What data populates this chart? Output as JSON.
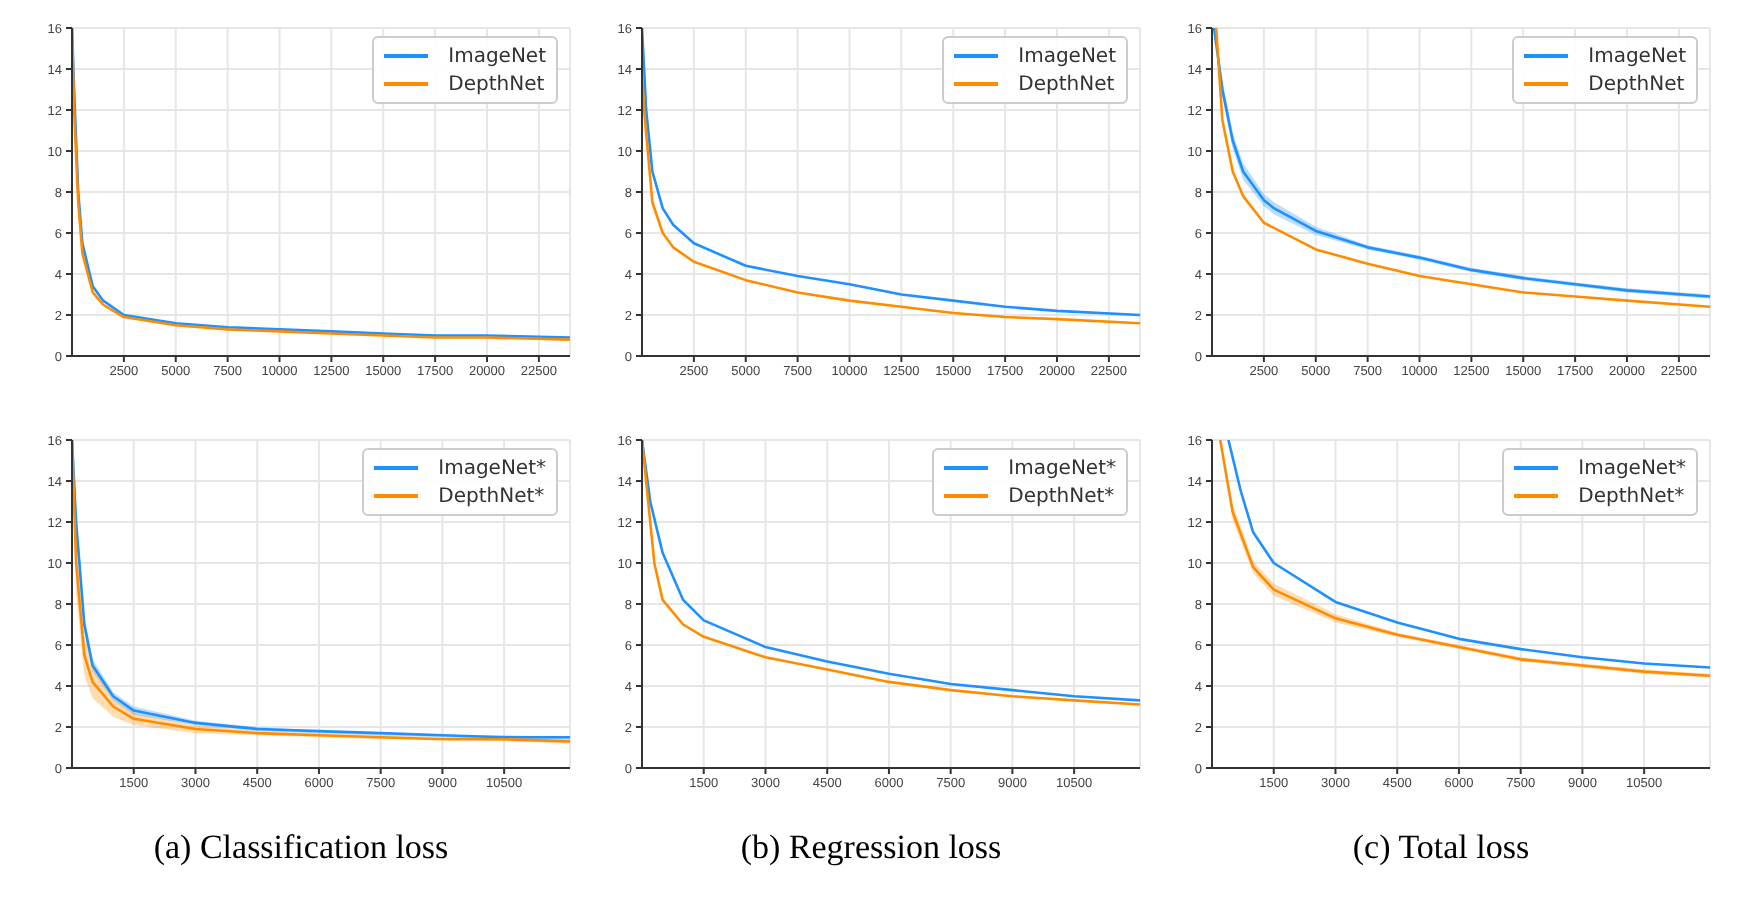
{
  "chart_data": [
    {
      "type": "line",
      "xlim": [
        0,
        24000
      ],
      "xticks": [
        2500,
        5000,
        7500,
        10000,
        12500,
        15000,
        17500,
        20000,
        22500
      ],
      "ylim": [
        0,
        16
      ],
      "yticks": [
        0,
        2,
        4,
        6,
        8,
        10,
        12,
        14,
        16
      ],
      "grid": true,
      "legend": "top right",
      "series": [
        {
          "name": "ImageNet",
          "color": "#1e90ff",
          "x": [
            0,
            100,
            300,
            500,
            1000,
            1500,
            2500,
            5000,
            7500,
            10000,
            12500,
            15000,
            17500,
            20000,
            24000
          ],
          "values": [
            16,
            13,
            8,
            5.5,
            3.4,
            2.7,
            2.0,
            1.6,
            1.4,
            1.3,
            1.2,
            1.1,
            1.0,
            1.0,
            0.9
          ]
        },
        {
          "name": "DepthNet",
          "color": "#ff8c00",
          "x": [
            0,
            100,
            300,
            500,
            1000,
            1500,
            2500,
            5000,
            7500,
            10000,
            12500,
            15000,
            17500,
            20000,
            24000
          ],
          "values": [
            16,
            12,
            7.5,
            5,
            3.1,
            2.5,
            1.9,
            1.5,
            1.3,
            1.2,
            1.1,
            1.0,
            0.9,
            0.9,
            0.8
          ]
        }
      ]
    },
    {
      "type": "line",
      "xlim": [
        0,
        24000
      ],
      "xticks": [
        2500,
        5000,
        7500,
        10000,
        12500,
        15000,
        17500,
        20000,
        22500
      ],
      "ylim": [
        0,
        16
      ],
      "yticks": [
        0,
        2,
        4,
        6,
        8,
        10,
        12,
        14,
        16
      ],
      "grid": true,
      "legend": "top right",
      "series": [
        {
          "name": "ImageNet",
          "color": "#1e90ff",
          "x": [
            0,
            200,
            500,
            1000,
            1500,
            2500,
            5000,
            7500,
            10000,
            12500,
            15000,
            17500,
            20000,
            24000
          ],
          "values": [
            16,
            12,
            9,
            7.2,
            6.4,
            5.5,
            4.4,
            3.9,
            3.5,
            3.0,
            2.7,
            2.4,
            2.2,
            2.0
          ]
        },
        {
          "name": "DepthNet",
          "color": "#ff8c00",
          "x": [
            0,
            100,
            500,
            1000,
            1500,
            2500,
            5000,
            7500,
            10000,
            12500,
            15000,
            17500,
            20000,
            24000
          ],
          "values": [
            14,
            12,
            7.5,
            6.0,
            5.3,
            4.6,
            3.7,
            3.1,
            2.7,
            2.4,
            2.1,
            1.9,
            1.8,
            1.6
          ]
        }
      ]
    },
    {
      "type": "line",
      "xlim": [
        0,
        24000
      ],
      "xticks": [
        2500,
        5000,
        7500,
        10000,
        12500,
        15000,
        17500,
        20000,
        22500
      ],
      "ylim": [
        0,
        16
      ],
      "yticks": [
        0,
        2,
        4,
        6,
        8,
        10,
        12,
        14,
        16
      ],
      "grid": true,
      "legend": "top right",
      "series": [
        {
          "name": "ImageNet",
          "color": "#1e90ff",
          "x": [
            100,
            500,
            1000,
            1500,
            2500,
            3000,
            5000,
            7500,
            10000,
            12500,
            15000,
            17500,
            20000,
            24000
          ],
          "values": [
            16,
            13,
            10.5,
            9,
            7.6,
            7.2,
            6.1,
            5.3,
            4.8,
            4.2,
            3.8,
            3.5,
            3.2,
            2.9
          ],
          "lower": [
            16,
            12.6,
            10.1,
            8.6,
            7.3,
            6.9,
            5.9,
            5.2,
            4.7,
            4.1,
            3.7,
            3.4,
            3.1,
            2.8
          ],
          "upper": [
            16,
            13.4,
            10.9,
            9.4,
            7.9,
            7.5,
            6.3,
            5.4,
            4.9,
            4.3,
            3.9,
            3.6,
            3.3,
            3.0
          ]
        },
        {
          "name": "DepthNet",
          "color": "#ff8c00",
          "x": [
            200,
            500,
            1000,
            1500,
            2500,
            5000,
            7500,
            10000,
            12500,
            15000,
            17500,
            20000,
            24000
          ],
          "values": [
            16,
            11.5,
            9,
            7.8,
            6.5,
            5.2,
            4.5,
            3.9,
            3.5,
            3.1,
            2.9,
            2.7,
            2.4
          ]
        }
      ]
    },
    {
      "type": "line",
      "xlim": [
        0,
        12100
      ],
      "xticks": [
        1500,
        3000,
        4500,
        6000,
        7500,
        9000,
        10500
      ],
      "ylim": [
        0,
        16
      ],
      "yticks": [
        0,
        2,
        4,
        6,
        8,
        10,
        12,
        14,
        16
      ],
      "grid": true,
      "legend": "top right",
      "annotations": [
        "(a) Classification loss"
      ],
      "series": [
        {
          "name": "ImageNet*",
          "color": "#1e90ff",
          "x": [
            0,
            100,
            300,
            500,
            1000,
            1500,
            3000,
            4500,
            6000,
            7500,
            9000,
            10500,
            12100
          ],
          "values": [
            16,
            12,
            7,
            5,
            3.5,
            2.8,
            2.2,
            1.9,
            1.8,
            1.7,
            1.6,
            1.5,
            1.5
          ],
          "lower": [
            16,
            11.5,
            6.6,
            4.7,
            3.3,
            2.6,
            2.1,
            1.8,
            1.7,
            1.6,
            1.5,
            1.4,
            1.4
          ],
          "upper": [
            16,
            12.5,
            7.4,
            5.3,
            3.7,
            3.0,
            2.3,
            2.0,
            1.8,
            1.7,
            1.6,
            1.6,
            1.5
          ]
        },
        {
          "name": "DepthNet*",
          "color": "#ff8c00",
          "x": [
            0,
            100,
            300,
            500,
            1000,
            1500,
            3000,
            4500,
            6000,
            7500,
            9000,
            10500,
            12100
          ],
          "values": [
            16,
            10,
            5.5,
            4.2,
            3.0,
            2.4,
            1.9,
            1.7,
            1.6,
            1.5,
            1.4,
            1.4,
            1.3
          ],
          "lower": [
            16,
            8.5,
            4.5,
            3.4,
            2.5,
            2.1,
            1.7,
            1.6,
            1.5,
            1.4,
            1.4,
            1.3,
            1.2
          ],
          "upper": [
            16,
            11.5,
            6.5,
            5.0,
            3.4,
            2.7,
            2.1,
            1.8,
            1.7,
            1.6,
            1.5,
            1.5,
            1.4
          ]
        }
      ]
    },
    {
      "type": "line",
      "xlim": [
        0,
        12100
      ],
      "xticks": [
        1500,
        3000,
        4500,
        6000,
        7500,
        9000,
        10500
      ],
      "ylim": [
        0,
        16
      ],
      "yticks": [
        0,
        2,
        4,
        6,
        8,
        10,
        12,
        14,
        16
      ],
      "grid": true,
      "legend": "top right",
      "annotations": [
        "(b) Regression loss"
      ],
      "series": [
        {
          "name": "ImageNet*",
          "color": "#1e90ff",
          "x": [
            0,
            200,
            500,
            1000,
            1500,
            3000,
            4500,
            6000,
            7500,
            9000,
            10500,
            12100
          ],
          "values": [
            16,
            13,
            10.5,
            8.2,
            7.2,
            5.9,
            5.2,
            4.6,
            4.1,
            3.8,
            3.5,
            3.3
          ]
        },
        {
          "name": "DepthNet*",
          "color": "#ff8c00",
          "x": [
            0,
            100,
            300,
            500,
            1000,
            1500,
            3000,
            4500,
            6000,
            7500,
            9000,
            10500,
            12100
          ],
          "values": [
            16,
            14,
            10,
            8.2,
            7.0,
            6.4,
            5.4,
            4.8,
            4.2,
            3.8,
            3.5,
            3.3,
            3.1
          ]
        }
      ]
    },
    {
      "type": "line",
      "xlim": [
        0,
        12100
      ],
      "xticks": [
        1500,
        3000,
        4500,
        6000,
        7500,
        9000,
        10500
      ],
      "ylim": [
        0,
        16
      ],
      "yticks": [
        0,
        2,
        4,
        6,
        8,
        10,
        12,
        14,
        16
      ],
      "grid": true,
      "legend": "top right",
      "annotations": [
        "(c) Total loss"
      ],
      "series": [
        {
          "name": "ImageNet*",
          "color": "#1e90ff",
          "x": [
            400,
            700,
            1000,
            1500,
            3000,
            4500,
            6000,
            7500,
            9000,
            10500,
            12100
          ],
          "values": [
            16,
            13.5,
            11.5,
            10,
            8.1,
            7.1,
            6.3,
            5.8,
            5.4,
            5.1,
            4.9
          ]
        },
        {
          "name": "DepthNet*",
          "color": "#ff8c00",
          "x": [
            200,
            500,
            1000,
            1500,
            3000,
            4500,
            6000,
            7500,
            9000,
            10500,
            12100
          ],
          "values": [
            16,
            12.5,
            9.8,
            8.7,
            7.3,
            6.5,
            5.9,
            5.3,
            5.0,
            4.7,
            4.5
          ],
          "lower": [
            16,
            12.1,
            9.5,
            8.4,
            7.1,
            6.4,
            5.8,
            5.2,
            4.9,
            4.6,
            4.4
          ],
          "upper": [
            16,
            12.9,
            10.1,
            9.0,
            7.5,
            6.6,
            6.0,
            5.4,
            5.1,
            4.8,
            4.6
          ]
        }
      ]
    }
  ]
}
